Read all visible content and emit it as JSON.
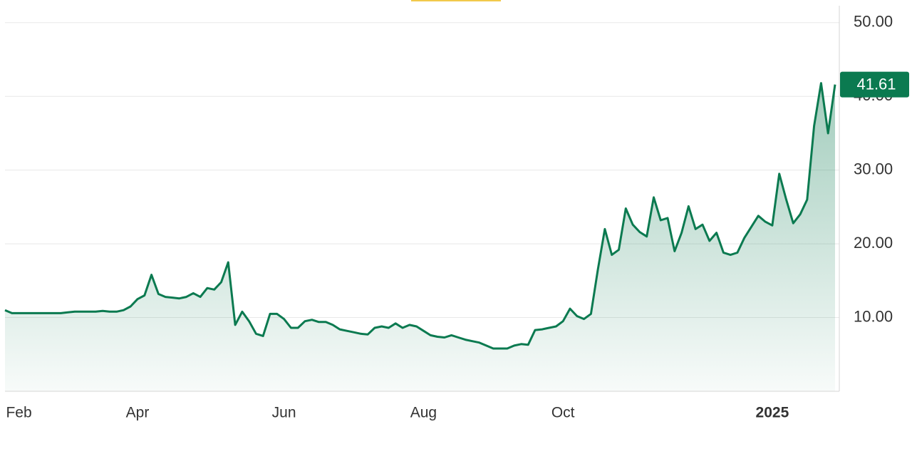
{
  "chart_data": {
    "type": "area",
    "categories": [
      null,
      null,
      "Feb",
      null,
      null,
      null,
      null,
      null,
      null,
      null,
      null,
      null,
      null,
      null,
      null,
      null,
      null,
      null,
      null,
      "Apr",
      null,
      null,
      null,
      null,
      null,
      null,
      null,
      null,
      null,
      null,
      null,
      null,
      null,
      null,
      null,
      null,
      null,
      null,
      null,
      null,
      "Jun",
      null,
      null,
      null,
      null,
      null,
      null,
      null,
      null,
      null,
      null,
      null,
      null,
      null,
      null,
      null,
      null,
      null,
      null,
      null,
      "Aug",
      null,
      null,
      null,
      null,
      null,
      null,
      null,
      null,
      null,
      null,
      null,
      null,
      null,
      null,
      null,
      null,
      null,
      null,
      null,
      "Oct",
      null,
      null,
      null,
      null,
      null,
      null,
      null,
      null,
      null,
      null,
      null,
      null,
      null,
      null,
      null,
      null,
      null,
      null,
      null,
      null,
      null,
      null,
      null,
      null,
      null,
      null,
      null,
      null,
      null,
      "2025",
      null,
      null,
      null,
      null,
      null,
      null,
      null,
      null,
      null
    ],
    "series": [
      {
        "color": "#0b7a50",
        "values": [
          11.0,
          10.6,
          10.6,
          10.6,
          10.6,
          10.6,
          10.6,
          10.6,
          10.6,
          10.7,
          10.8,
          10.8,
          10.8,
          10.8,
          10.9,
          10.8,
          10.8,
          11.0,
          11.5,
          12.5,
          13.0,
          15.8,
          13.2,
          12.8,
          12.7,
          12.6,
          12.8,
          13.3,
          12.8,
          14.0,
          13.8,
          14.8,
          17.5,
          9.0,
          10.8,
          9.5,
          7.8,
          7.5,
          10.5,
          10.5,
          9.8,
          8.6,
          8.6,
          9.5,
          9.7,
          9.4,
          9.4,
          9.0,
          8.4,
          8.2,
          8.0,
          7.8,
          7.7,
          8.6,
          8.8,
          8.6,
          9.2,
          8.6,
          9.0,
          8.8,
          8.2,
          7.6,
          7.4,
          7.3,
          7.6,
          7.3,
          7.0,
          6.8,
          6.6,
          6.2,
          5.8,
          5.8,
          5.8,
          6.2,
          6.4,
          6.3,
          8.3,
          8.4,
          8.6,
          8.8,
          9.5,
          11.2,
          10.2,
          9.8,
          10.5,
          16.5,
          22.0,
          18.5,
          19.2,
          24.8,
          22.6,
          21.6,
          21.0,
          26.3,
          23.2,
          23.5,
          19.0,
          21.5,
          25.1,
          22.0,
          22.6,
          20.4,
          21.5,
          18.8,
          18.5,
          18.8,
          20.8,
          22.3,
          23.8,
          23.0,
          22.5,
          29.5,
          26.0,
          22.8,
          24.0,
          26.0,
          36.0,
          41.8,
          35.0,
          41.61
        ]
      }
    ],
    "ylim": [
      0,
      52.3
    ],
    "yticks": [
      {
        "value": 10,
        "label": "10.00"
      },
      {
        "value": 20,
        "label": "20.00"
      },
      {
        "value": 30,
        "label": "30.00"
      },
      {
        "value": 40,
        "label": "40.00"
      },
      {
        "value": 50,
        "label": "50.00"
      }
    ],
    "grid": true
  }
}
